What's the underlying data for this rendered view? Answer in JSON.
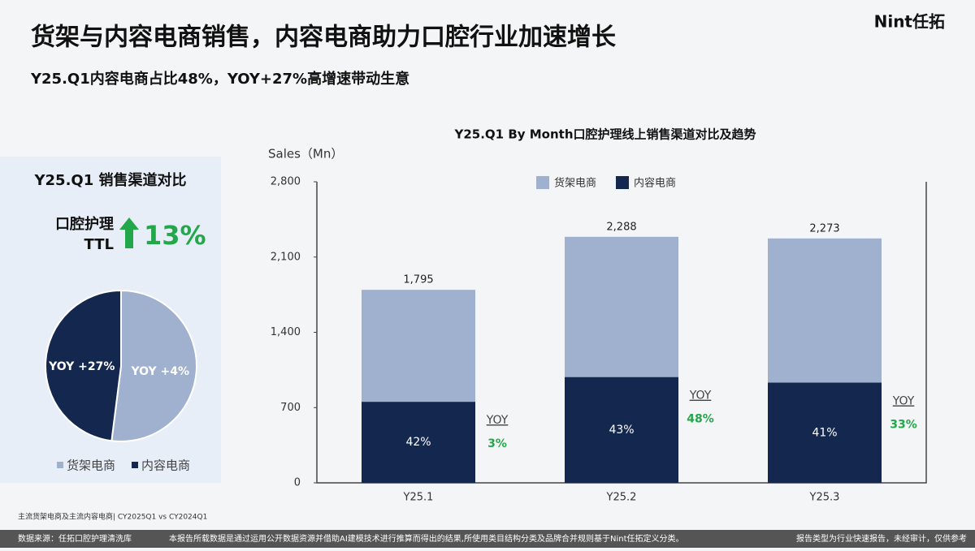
{
  "header": {
    "title": "货架与内容电商销售，内容电商助力口腔行业加速增长",
    "subtitle": "Y25.Q1内容电商占比48%，YOY+27%高增速带动生意",
    "logo": "Nint任拓"
  },
  "panel": {
    "title": "Y25.Q1 销售渠道对比",
    "ttl_label": [
      "口腔护理",
      "TTL"
    ],
    "ttl_growth": "13%"
  },
  "footer": {
    "note": "主流货架电商及主流内容电商| CY2025Q1 vs CY2024Q1",
    "source": "数据来源：任拓口腔护理清洗库",
    "disclaimer": "本报告所载数据是通过运用公开数据资源并借助AI建模技术进行推算而得出的结果,所使用类目结构分类及品牌合并规则基于Nint任拓定义分类。",
    "report_type": "报告类型为行业快速报告，未经审计，仅供参考"
  },
  "chart_data": [
    {
      "type": "pie",
      "categories": [
        "货架电商",
        "内容电商"
      ],
      "values": [
        52,
        48
      ],
      "colors": [
        "#9fb1cf",
        "#14284f"
      ],
      "slice_labels": [
        "YOY +4%",
        "YOY +27%"
      ]
    },
    {
      "type": "bar",
      "title": "Y25.Q1 By Month口腔护理线上销售渠道对比及趋势",
      "y_label": "Sales（Mn）",
      "stacked": true,
      "categories": [
        "Y25.1",
        "Y25.2",
        "Y25.3"
      ],
      "series": [
        {
          "name": "货架电商",
          "color": "#9fb1cf",
          "values": [
            1041,
            1304,
            1341
          ]
        },
        {
          "name": "内容电商",
          "color": "#14284f",
          "values": [
            754,
            984,
            932
          ]
        }
      ],
      "totals": {
        "values": [
          1795,
          2288,
          2273
        ],
        "value_labels": [
          "1,795",
          "2,288",
          "2,273"
        ]
      },
      "shares": {
        "values": [
          42,
          43,
          41
        ],
        "value_labels": [
          "42%",
          "43%",
          "41%"
        ]
      },
      "yoy": {
        "label": "YOY",
        "values": [
          3,
          48,
          33
        ],
        "value_labels": [
          "3%",
          "48%",
          "33%"
        ],
        "color": "#22a84a"
      },
      "ylim": [
        0,
        2800
      ],
      "yticks": [
        0,
        {
          "value": 700,
          "label": "700"
        },
        {
          "value": 1400,
          "label": "1,400"
        },
        {
          "value": 2100,
          "label": "2,100"
        },
        {
          "value": 2800,
          "label": "2,800"
        }
      ]
    }
  ]
}
